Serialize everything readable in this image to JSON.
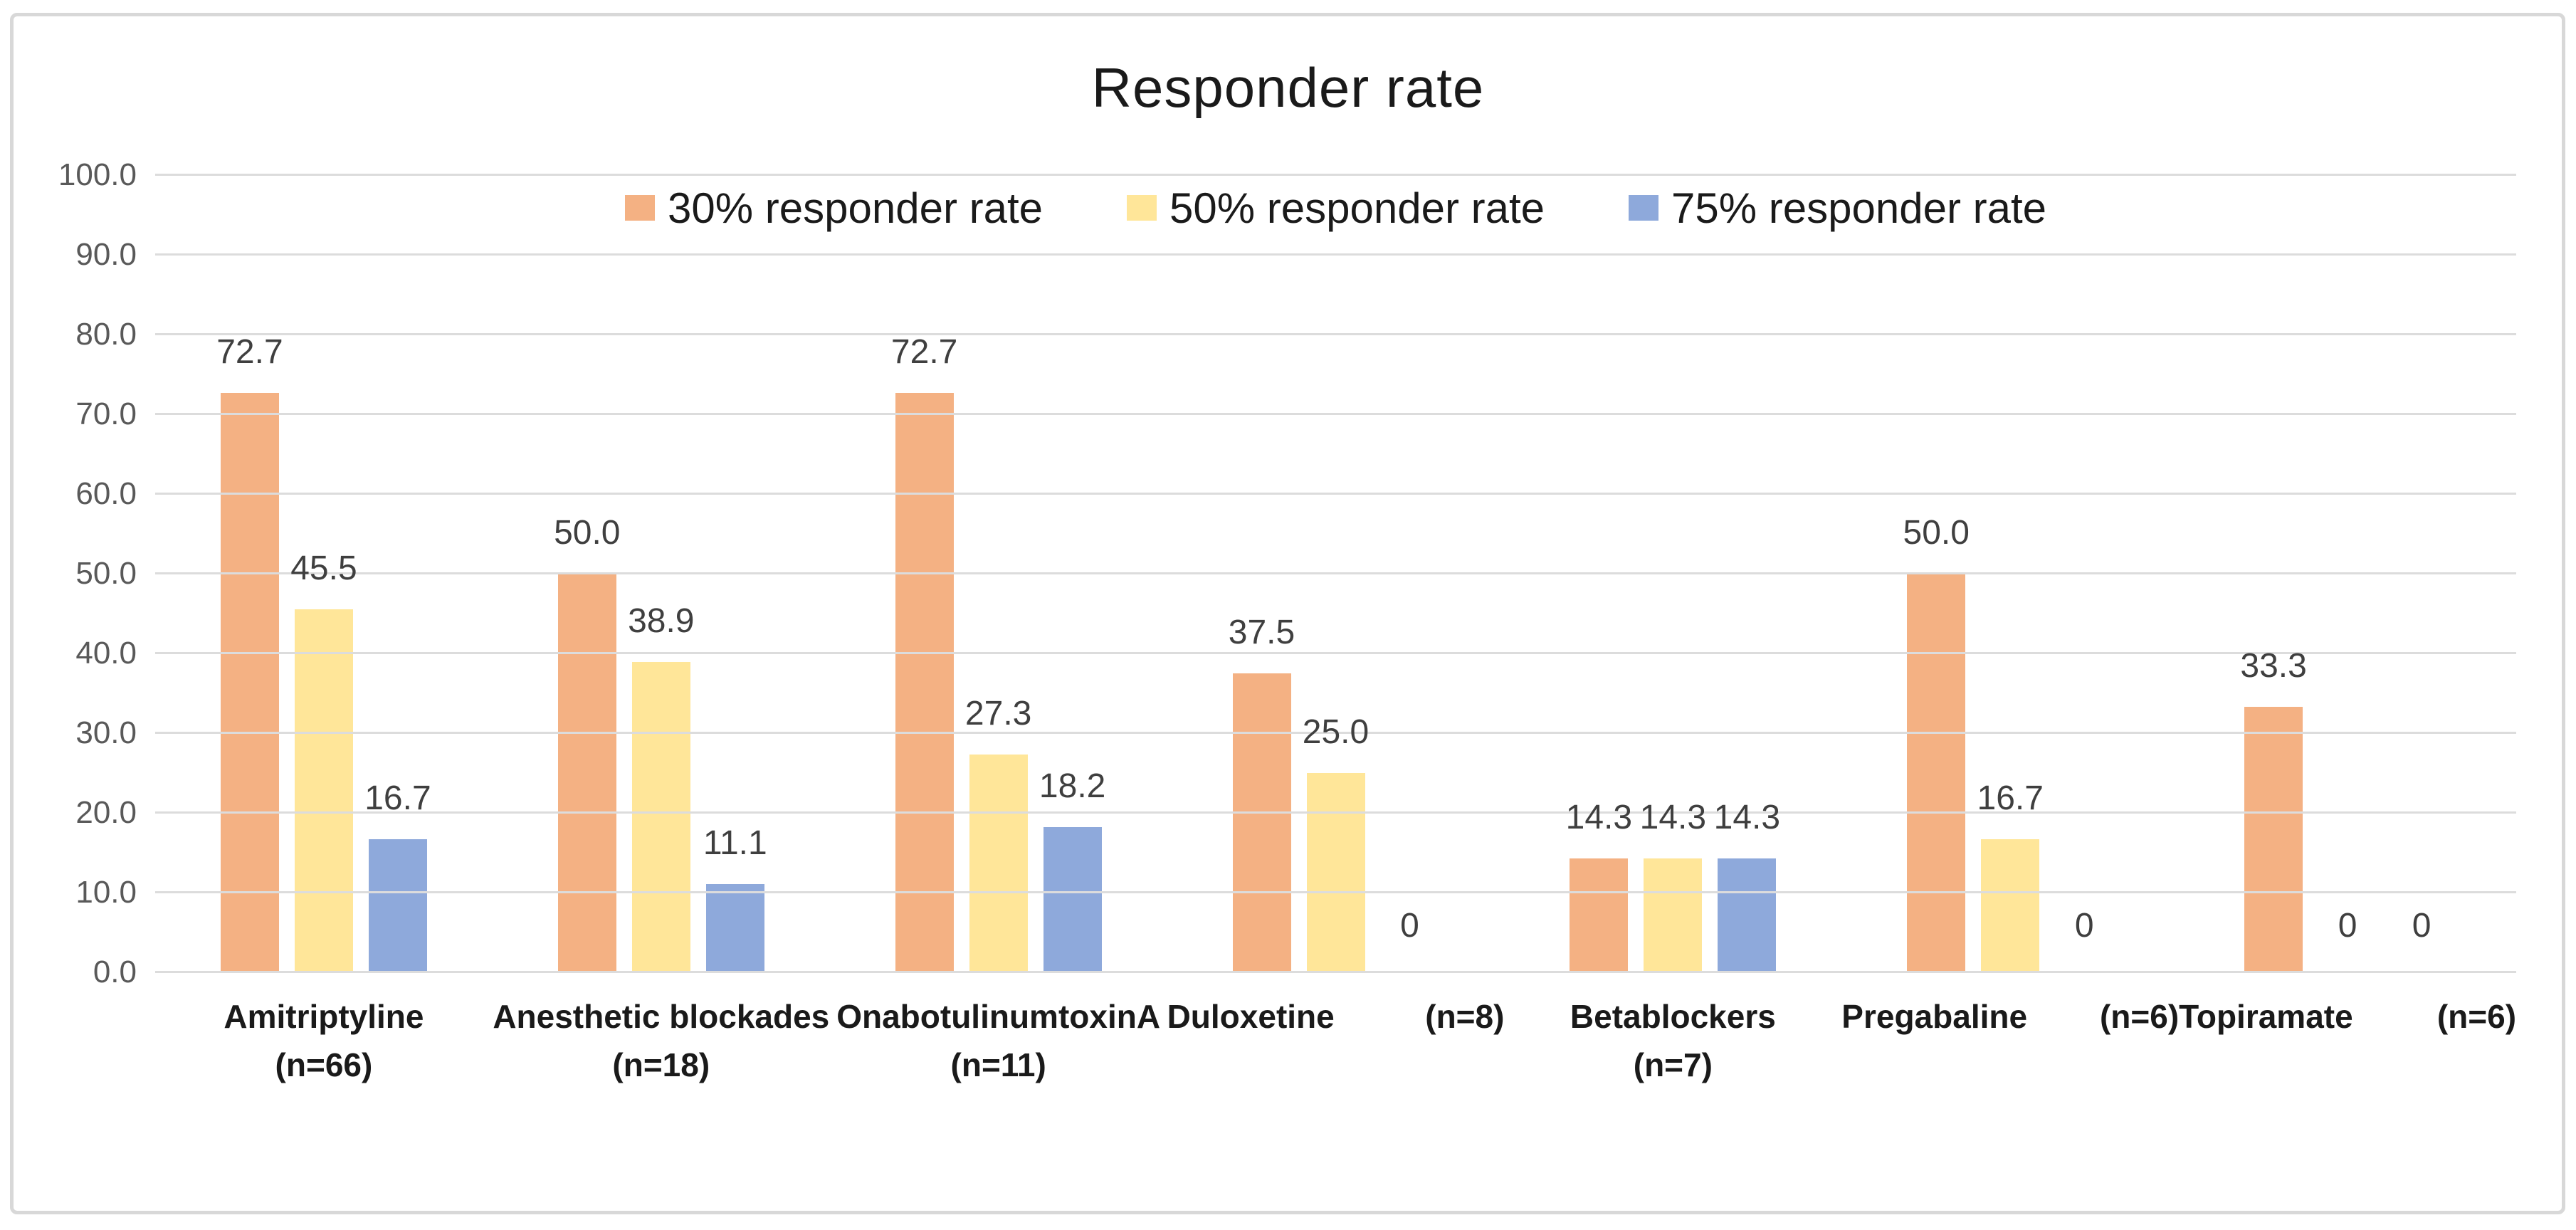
{
  "figure": {
    "title": "Responder rate"
  },
  "chart_data": {
    "type": "bar",
    "title": "Responder rate",
    "ylabel": "",
    "xlabel": "",
    "ylim": [
      0,
      100
    ],
    "ytick_step": 10,
    "ytick_decimals": 1,
    "grid": true,
    "legend_position": "top-inside",
    "zero_label": "0",
    "categories": [
      {
        "name": "Amitriptyline",
        "n_label": "(n=66)",
        "label_layout": "stacked"
      },
      {
        "name": "Anesthetic blockades",
        "n_label": "(n=18)",
        "label_layout": "stacked"
      },
      {
        "name": "OnabotulinumtoxinA",
        "n_label": "(n=11)",
        "label_layout": "stacked"
      },
      {
        "name": "Duloxetine",
        "n_label": "(n=8)",
        "label_layout": "inline"
      },
      {
        "name": "Betablockers",
        "n_label": "(n=7)",
        "label_layout": "stacked"
      },
      {
        "name": "Pregabaline",
        "n_label": "(n=6)",
        "label_layout": "inline"
      },
      {
        "name": "Topiramate",
        "n_label": "(n=6)",
        "label_layout": "inline"
      }
    ],
    "series": [
      {
        "name": "30% responder rate",
        "color": "#F4B183",
        "values": [
          72.7,
          50.0,
          72.7,
          37.5,
          14.3,
          50.0,
          33.3
        ]
      },
      {
        "name": "50% responder rate",
        "color": "#FFE699",
        "values": [
          45.5,
          38.9,
          27.3,
          25.0,
          14.3,
          16.7,
          0
        ]
      },
      {
        "name": "75% responder rate",
        "color": "#8EA9DB",
        "values": [
          16.7,
          11.1,
          18.2,
          0,
          14.3,
          0,
          0
        ]
      }
    ]
  },
  "style": {
    "frame_border_color": "#D8D8D8",
    "gridline_color": "#DCDCDC",
    "axis_text_color": "#595959",
    "data_label_color": "#3F3F3F",
    "category_label_color": "#1A1A1A"
  }
}
